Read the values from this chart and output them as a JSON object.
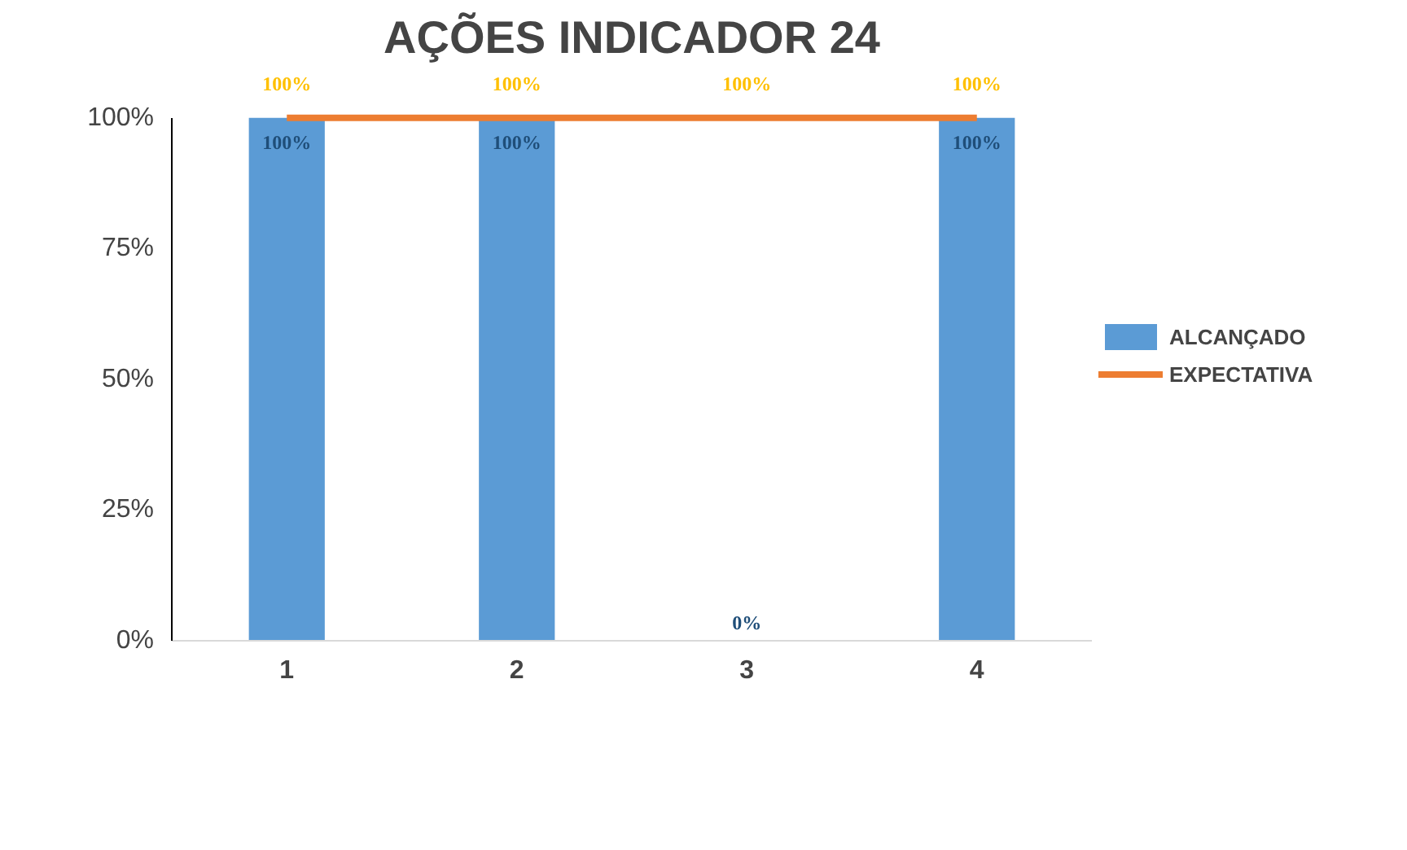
{
  "chart_data": {
    "type": "bar",
    "title": "AÇÕES INDICADOR 24",
    "categories": [
      "1",
      "2",
      "3",
      "4"
    ],
    "series": [
      {
        "name": "ALCANÇADO",
        "type": "bar",
        "color": "#5b9bd5",
        "values": [
          100,
          100,
          0,
          100
        ],
        "value_labels": [
          "100%",
          "100%",
          "0%",
          "100%"
        ]
      },
      {
        "name": "EXPECTATIVA",
        "type": "line",
        "color": "#ed7d31",
        "values": [
          100,
          100,
          100,
          100
        ],
        "value_labels": [
          "100%",
          "100%",
          "100%",
          "100%"
        ]
      }
    ],
    "ylim": [
      0,
      100
    ],
    "yticks": [
      {
        "value": 0,
        "label": "0%"
      },
      {
        "value": 25,
        "label": "25%"
      },
      {
        "value": 50,
        "label": "50%"
      },
      {
        "value": 75,
        "label": "75%"
      },
      {
        "value": 100,
        "label": "100%"
      }
    ],
    "grid": false,
    "legend": "right"
  }
}
